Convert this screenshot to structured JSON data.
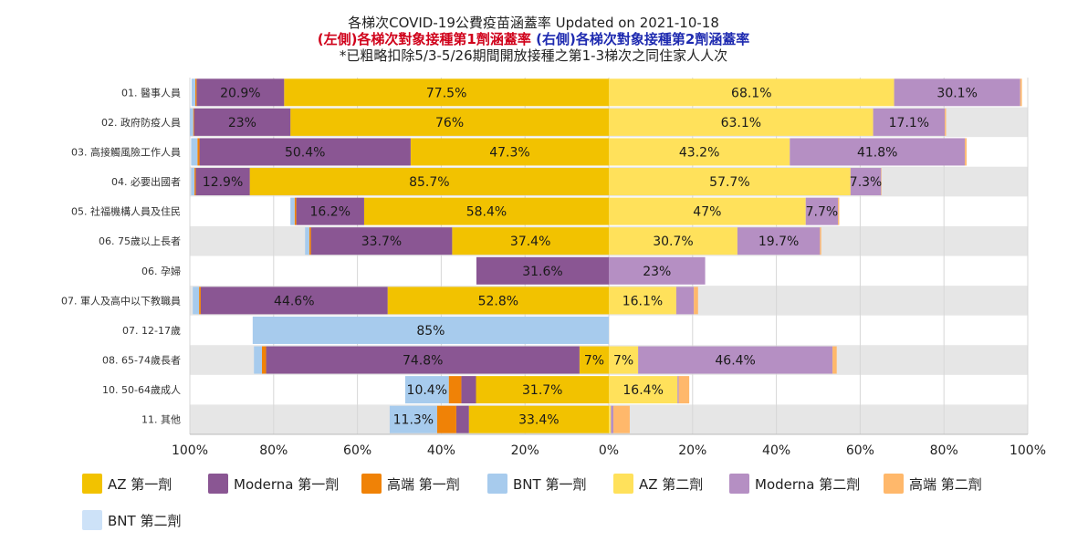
{
  "title": {
    "line1": "各梯次COVID-19公費疫苗涵蓋率 Updated on 2021-10-18",
    "line2_left": "(左側)各梯次對象接種第1劑涵蓋率",
    "line2_right": "(右側)各梯次對象接種第2劑涵蓋率",
    "line3": "*已粗略扣除5/3-5/26期間開放接種之第1-3梯次之同住家人人次"
  },
  "colors": {
    "az1": "#f2c200",
    "moderna1": "#8a5693",
    "high1": "#f08206",
    "bnt1": "#a7cbed",
    "az2": "#ffe15b",
    "moderna2": "#b58fc3",
    "high2": "#ffb86b",
    "bnt2": "#cde2f8",
    "red_text": "#d0021b",
    "blue_text": "#1f2bb0"
  },
  "chart_data": {
    "type": "bar",
    "orientation": "horizontal-diverging-stacked",
    "categories": [
      "01. 醫事人員",
      "02. 政府防疫人員",
      "03. 高接觸風險工作人員",
      "04. 必要出國者",
      "05. 社福機構人員及住民",
      "06. 75歲以上長者",
      "06. 孕婦",
      "07. 軍人及高中以下教職員",
      "07. 12-17歲",
      "08. 65-74歲長者",
      "10. 50-64歲成人",
      "11. 其他"
    ],
    "series_left": [
      {
        "key": "az1",
        "name": "AZ 第一劑",
        "values": [
          77.5,
          76,
          47.3,
          85.7,
          58.4,
          37.4,
          0,
          52.8,
          0,
          7,
          31.7,
          33.4
        ]
      },
      {
        "key": "moderna1",
        "name": "Moderna 第一劑",
        "values": [
          20.9,
          23,
          50.4,
          12.9,
          16.2,
          33.7,
          31.6,
          44.6,
          0,
          74.8,
          3.5,
          3
        ]
      },
      {
        "key": "high1",
        "name": "高端 第一劑",
        "values": [
          0.3,
          0.2,
          0.5,
          0.3,
          0.4,
          0.4,
          0,
          0.4,
          0,
          1,
          3,
          4.6
        ]
      },
      {
        "key": "bnt1",
        "name": "BNT 第一劑",
        "values": [
          0.9,
          0.8,
          1.5,
          0.8,
          1,
          1,
          0,
          1.5,
          85,
          1.9,
          10.4,
          11.3
        ]
      }
    ],
    "series_right": [
      {
        "key": "az2",
        "name": "AZ 第二劑",
        "values": [
          68.1,
          63.1,
          43.2,
          57.7,
          47,
          30.7,
          0,
          16.1,
          0,
          7,
          16.4,
          0.5
        ]
      },
      {
        "key": "moderna2",
        "name": "Moderna 第二劑",
        "values": [
          30.1,
          17.1,
          41.8,
          7.3,
          7.7,
          19.7,
          23,
          4.2,
          0,
          46.4,
          0.3,
          0.6
        ]
      },
      {
        "key": "high2",
        "name": "高端 第二劑",
        "values": [
          0.4,
          0.3,
          0.4,
          0.1,
          0.3,
          0.3,
          0,
          1,
          0,
          1,
          2.5,
          3.9
        ]
      },
      {
        "key": "bnt2",
        "name": "BNT 第二劑",
        "values": [
          0,
          0,
          0,
          0,
          0,
          0,
          0,
          0,
          0,
          0,
          0,
          0
        ]
      }
    ],
    "label_threshold": 5,
    "x_ticks_left": [
      "100%",
      "80%",
      "60%",
      "40%",
      "20%"
    ],
    "x_ticks_right": [
      "0%",
      "20%",
      "40%",
      "60%",
      "80%",
      "100%"
    ],
    "xlim": [
      -100,
      100
    ],
    "grid": true,
    "legend_position": "bottom",
    "legend": [
      {
        "key": "az1",
        "label": "AZ 第一劑"
      },
      {
        "key": "moderna1",
        "label": "Moderna 第一劑"
      },
      {
        "key": "high1",
        "label": "高端 第一劑"
      },
      {
        "key": "bnt1",
        "label": "BNT 第一劑"
      },
      {
        "key": "az2",
        "label": "AZ 第二劑"
      },
      {
        "key": "moderna2",
        "label": "Moderna 第二劑"
      },
      {
        "key": "high2",
        "label": "高端 第二劑"
      },
      {
        "key": "bnt2",
        "label": "BNT 第二劑"
      }
    ]
  }
}
